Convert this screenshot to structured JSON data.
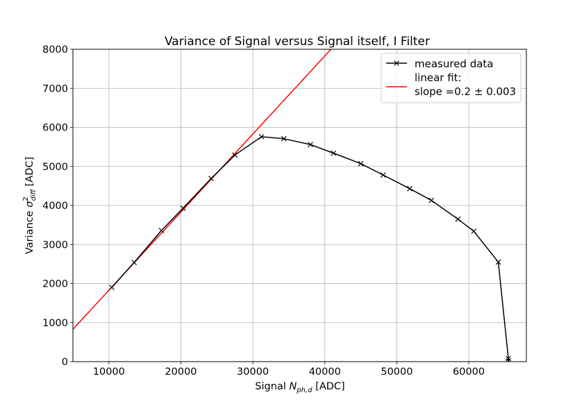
{
  "chart_data": {
    "type": "line",
    "title": "Variance of Signal versus Signal itself, I Filter",
    "xlabel": {
      "base": "Signal ",
      "var": "N",
      "sub": "ph,d",
      "unit": " [ADC]"
    },
    "ylabel": {
      "base": "Variance ",
      "var": "σ",
      "sup": "2",
      "sub": "diff",
      "unit": " [ADC]"
    },
    "xlim": [
      5000,
      68000
    ],
    "ylim": [
      0,
      8000
    ],
    "xticks": [
      10000,
      20000,
      30000,
      40000,
      50000,
      60000
    ],
    "yticks": [
      0,
      1000,
      2000,
      3000,
      4000,
      5000,
      6000,
      7000,
      8000
    ],
    "grid": true,
    "legend_position": "upper right",
    "series": [
      {
        "name": "measured data",
        "color": "#000000",
        "marker": "x",
        "x": [
          10400,
          13500,
          17300,
          20300,
          24200,
          27500,
          31200,
          34300,
          38000,
          41200,
          45000,
          48100,
          51800,
          54800,
          58500,
          60700,
          64100,
          65500,
          65500
        ],
        "y": [
          1900,
          2540,
          3360,
          3930,
          4690,
          5290,
          5760,
          5710,
          5560,
          5340,
          5070,
          4780,
          4430,
          4130,
          3650,
          3340,
          2550,
          80,
          20
        ]
      }
    ],
    "fit": {
      "name_line1": "linear fit:",
      "name_line2": "slope =0.2 ± 0.003",
      "color": "#ff0000",
      "slope": 0.2,
      "intercept": -170
    }
  }
}
